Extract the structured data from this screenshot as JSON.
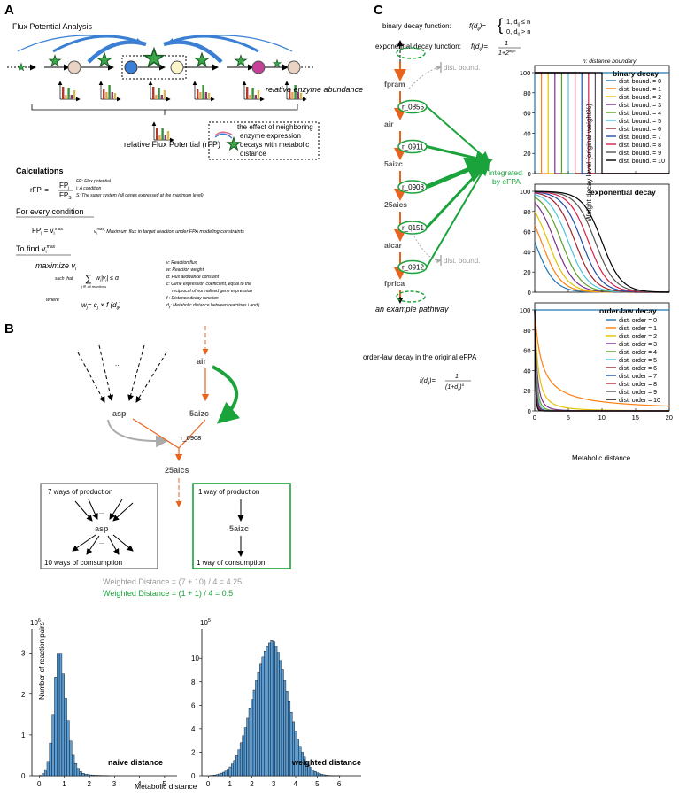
{
  "panelA": {
    "label": "A",
    "title": "Flux Potential Analysis",
    "relative_enzyme_abundance": "relative enzyme abundance",
    "rfp_label": "relative Flux Potential (rFP)",
    "legend_line1": "the effect of neighboring",
    "legend_line2": "enzyme expression",
    "legend_line3": "decays with metabolic",
    "legend_line4": "distance",
    "calc_title": "Calculations",
    "rfp_lhs": "rFP",
    "rfp_sub": "i",
    "eq": "=",
    "frac_num": "FP",
    "frac_num_sub": "i",
    "frac_den": "FP",
    "frac_den_sub": "S",
    "def_fp": "FP: Flux potential",
    "def_i": "i: A condition",
    "def_s": "S: The super system (all genes expressed at the maximum level)",
    "every_condition": "For every condition",
    "fpi_eq": "FP",
    "fpi_sub": "i",
    "fpi_rhs": "= v",
    "fpi_rhs_sub": "i",
    "fpi_rhs_sup": "max",
    "vmax_def": "v",
    "vmax_def_sub": "i",
    "vmax_def_sup": "max",
    "vmax_def_text": ": Maximum flux in target reaction under FPA modeling constraints",
    "to_find": "To find v",
    "to_find_sub": "i",
    "to_find_sup": "max",
    "maximize": "maximize v",
    "maximize_sub": "i",
    "such_that": "such that",
    "sum_sym": "∑",
    "sum_under": "j ∈ all reactions",
    "constraint": "w",
    "constraint_sub": "j",
    "constraint_mid": "|v",
    "constraint_mid_sub": "j",
    "constraint_end": "| ≤ α",
    "where": "where",
    "w_eq": "w",
    "w_eq_sub": "j",
    "w_eq_rhs": "= c",
    "w_eq_rhs_sub": "j",
    "w_eq_tail": "× f (d",
    "w_eq_tail_sub": "ij",
    "w_eq_close": ")",
    "defs": [
      "v: Reaction flux",
      "w: Reaction weight",
      "α: Flux allowance constant",
      "c: Gene expression coefficient, equal to the",
      "reciprocal of normalized gene expression",
      "f : Distance decay function",
      "d",
      "ij",
      ": Metabolic distance between reactions i and j"
    ]
  },
  "panelB": {
    "label": "B",
    "dots": "...",
    "air": "air",
    "asp": "asp",
    "aizc": "5aizc",
    "r0908": "r_0908",
    "aics": "25aics",
    "box1_top": "7 ways of production",
    "box1_dots1": "...",
    "box1_asp": "asp",
    "box1_dots2": "...",
    "box1_bottom": "10 ways of comsumption",
    "box2_top": "1 way of production",
    "box2_aizc": "5aizc",
    "box2_bottom": "1 way of consumption",
    "wd_gray": "Weighted Distance = (7 + 10) / 4 = 4.25",
    "wd_green": "Weighted Distance = (1 + 1) / 4 = 0.5",
    "hist1": {
      "exponent": "10",
      "exponent_sup": "6",
      "label": "naive distance",
      "yticks": [
        "0",
        "1",
        "2",
        "3"
      ],
      "xticks": [
        "0",
        "1",
        "2",
        "3",
        "4",
        "5"
      ]
    },
    "hist2": {
      "exponent": "10",
      "exponent_sup": "5",
      "label": "weighted distance",
      "yticks": [
        "0",
        "2",
        "4",
        "6",
        "8",
        "10"
      ],
      "xticks": [
        "0",
        "1",
        "2",
        "3",
        "4",
        "5",
        "6"
      ]
    },
    "ylabel": "Number of reaction pairs",
    "xlabel": "Metabolic distance"
  },
  "panelC": {
    "label": "C",
    "binary_label": "binary decay function:",
    "binary_f": "f(d",
    "binary_f_sub": "ij",
    "binary_f_end": ")=",
    "binary_case1": "1,   d",
    "binary_case1_sub": "ij",
    "binary_case1_end": " ≤ n",
    "binary_case2": "0,   d",
    "binary_case2_sub": "ij",
    "binary_case2_end": " > n",
    "exp_label": "exponential decay function:",
    "exp_f": "f(d",
    "exp_f_sub": "ij",
    "exp_f_end": ")=",
    "exp_num": "1",
    "exp_den": "1+2",
    "exp_den_sup": "dij-n",
    "n_def": "n: distance boundary",
    "pathway_nodes": [
      "fpram",
      "air",
      "5aizc",
      "25aics",
      "aicar",
      "fprica"
    ],
    "pathway_rxns": [
      "r_0855",
      "r_0911",
      "r_0908",
      "r_0151",
      "r_0912"
    ],
    "dist_bound": "dist. bound.",
    "integrated1": "integrated",
    "integrated2": "by eFPA",
    "example_pathway": "an example pathway",
    "orderlaw_label": "order-law decay in the original eFPA",
    "orderlaw_f": "f(d",
    "orderlaw_f_sub": "ij",
    "orderlaw_f_end": ")=",
    "orderlaw_num": "1",
    "orderlaw_den": "(1+d",
    "orderlaw_den_sub": "ij",
    "orderlaw_den_end": ")",
    "orderlaw_den_sup": "o",
    "ylabel": "Weight decay level (original weight%)",
    "xlabel": "Metabolic distance",
    "binary_title": "binary decay",
    "exp_title": "exponential decay",
    "order_title": "order-law decay",
    "yticks": [
      "0",
      "20",
      "40",
      "60",
      "80",
      "100"
    ],
    "xticks": [
      "0",
      "5",
      "10",
      "15",
      "20"
    ],
    "bound_legend": [
      "dist. bound. = 0",
      "dist. bound. = 1",
      "dist. bound. = 2",
      "dist. bound. = 3",
      "dist. bound. = 4",
      "dist. bound. = 5",
      "dist. bound. = 6",
      "dist. bound. = 7",
      "dist. bound. = 8",
      "dist. bound. = 9",
      "dist. bound. = 10"
    ],
    "order_legend": [
      "dist. order = 0",
      "dist. order = 1",
      "dist. order = 2",
      "dist. order = 3",
      "dist. order = 4",
      "dist. order = 5",
      "dist. order = 6",
      "dist. order = 7",
      "dist. order = 8",
      "dist. order = 9",
      "dist. order = 10"
    ],
    "colors": [
      "#1f77b4",
      "#ff7f0e",
      "#e4c200",
      "#7b2f8e",
      "#5aa02c",
      "#4ec3e0",
      "#a32030",
      "#1f4ea8",
      "#d6204a",
      "#555555",
      "#000000"
    ]
  },
  "chart_data": [
    {
      "type": "bar",
      "name_ref": "naive distance",
      "xlabel": "Metabolic distance",
      "ylabel": "Number of reaction pairs",
      "ylim": [
        0,
        3.6
      ],
      "xlim": [
        -0.3,
        5.5
      ],
      "y_scale_note": "10^6",
      "x": [
        0.05,
        0.15,
        0.25,
        0.35,
        0.45,
        0.55,
        0.65,
        0.75,
        0.85,
        0.95,
        1.05,
        1.15,
        1.25,
        1.35,
        1.45,
        1.55,
        1.65,
        1.75,
        1.85,
        1.95,
        2.05,
        2.15,
        2.25,
        2.35,
        2.45,
        2.55,
        2.65,
        2.75
      ],
      "values": [
        0.01,
        0.05,
        0.15,
        0.35,
        0.8,
        1.5,
        2.4,
        3.0,
        3.0,
        2.5,
        1.9,
        1.35,
        0.85,
        0.5,
        0.3,
        0.18,
        0.1,
        0.06,
        0.04,
        0.03,
        0.02,
        0.015,
        0.01,
        0.01,
        0.008,
        0.006,
        0.005,
        0.004
      ]
    },
    {
      "type": "bar",
      "name_ref": "weighted distance",
      "xlabel": "Metabolic distance",
      "ylabel": "Number of reaction pairs",
      "ylim": [
        0,
        12.5
      ],
      "xlim": [
        -0.3,
        7
      ],
      "y_scale_note": "10^5",
      "x": [
        0.1,
        0.2,
        0.3,
        0.4,
        0.5,
        0.6,
        0.7,
        0.8,
        0.9,
        1.0,
        1.1,
        1.2,
        1.3,
        1.4,
        1.5,
        1.6,
        1.7,
        1.8,
        1.9,
        2.0,
        2.1,
        2.2,
        2.3,
        2.4,
        2.5,
        2.6,
        2.7,
        2.8,
        2.9,
        3.0,
        3.1,
        3.2,
        3.3,
        3.4,
        3.5,
        3.6,
        3.7,
        3.8,
        3.9,
        4.0,
        4.1,
        4.2,
        4.3,
        4.4,
        4.5,
        4.6,
        4.7,
        4.8,
        4.9,
        5.0,
        5.1,
        5.2,
        5.3,
        5.4,
        5.5,
        5.6,
        5.7,
        5.8,
        5.9,
        6.0
      ],
      "values": [
        0.02,
        0.04,
        0.06,
        0.1,
        0.15,
        0.22,
        0.3,
        0.4,
        0.55,
        0.75,
        1.0,
        1.3,
        1.7,
        2.2,
        2.8,
        3.4,
        4.1,
        4.9,
        5.7,
        6.5,
        7.3,
        8.1,
        8.8,
        9.5,
        10.1,
        10.6,
        11.0,
        11.3,
        11.5,
        11.4,
        11.0,
        10.5,
        9.8,
        9.0,
        8.1,
        7.2,
        6.3,
        5.4,
        4.6,
        3.8,
        3.1,
        2.5,
        2.0,
        1.6,
        1.2,
        0.9,
        0.7,
        0.5,
        0.35,
        0.25,
        0.18,
        0.12,
        0.08,
        0.05,
        0.03,
        0.02,
        0.015,
        0.01,
        0.008,
        0.005
      ]
    },
    {
      "type": "line",
      "title": "binary decay",
      "xlim": [
        0,
        20
      ],
      "ylim": [
        0,
        100
      ],
      "series_param": [
        0,
        1,
        2,
        3,
        4,
        5,
        6,
        7,
        8,
        9,
        10
      ],
      "function": "binary"
    },
    {
      "type": "line",
      "title": "exponential decay",
      "xlim": [
        0,
        20
      ],
      "ylim": [
        0,
        100
      ],
      "series_param": [
        0,
        1,
        2,
        3,
        4,
        5,
        6,
        7,
        8,
        9,
        10
      ],
      "function": "exponential"
    },
    {
      "type": "line",
      "title": "order-law decay",
      "xlim": [
        0,
        20
      ],
      "ylim": [
        0,
        100
      ],
      "series_param": [
        0,
        1,
        2,
        3,
        4,
        5,
        6,
        7,
        8,
        9,
        10
      ],
      "function": "order-law"
    }
  ]
}
